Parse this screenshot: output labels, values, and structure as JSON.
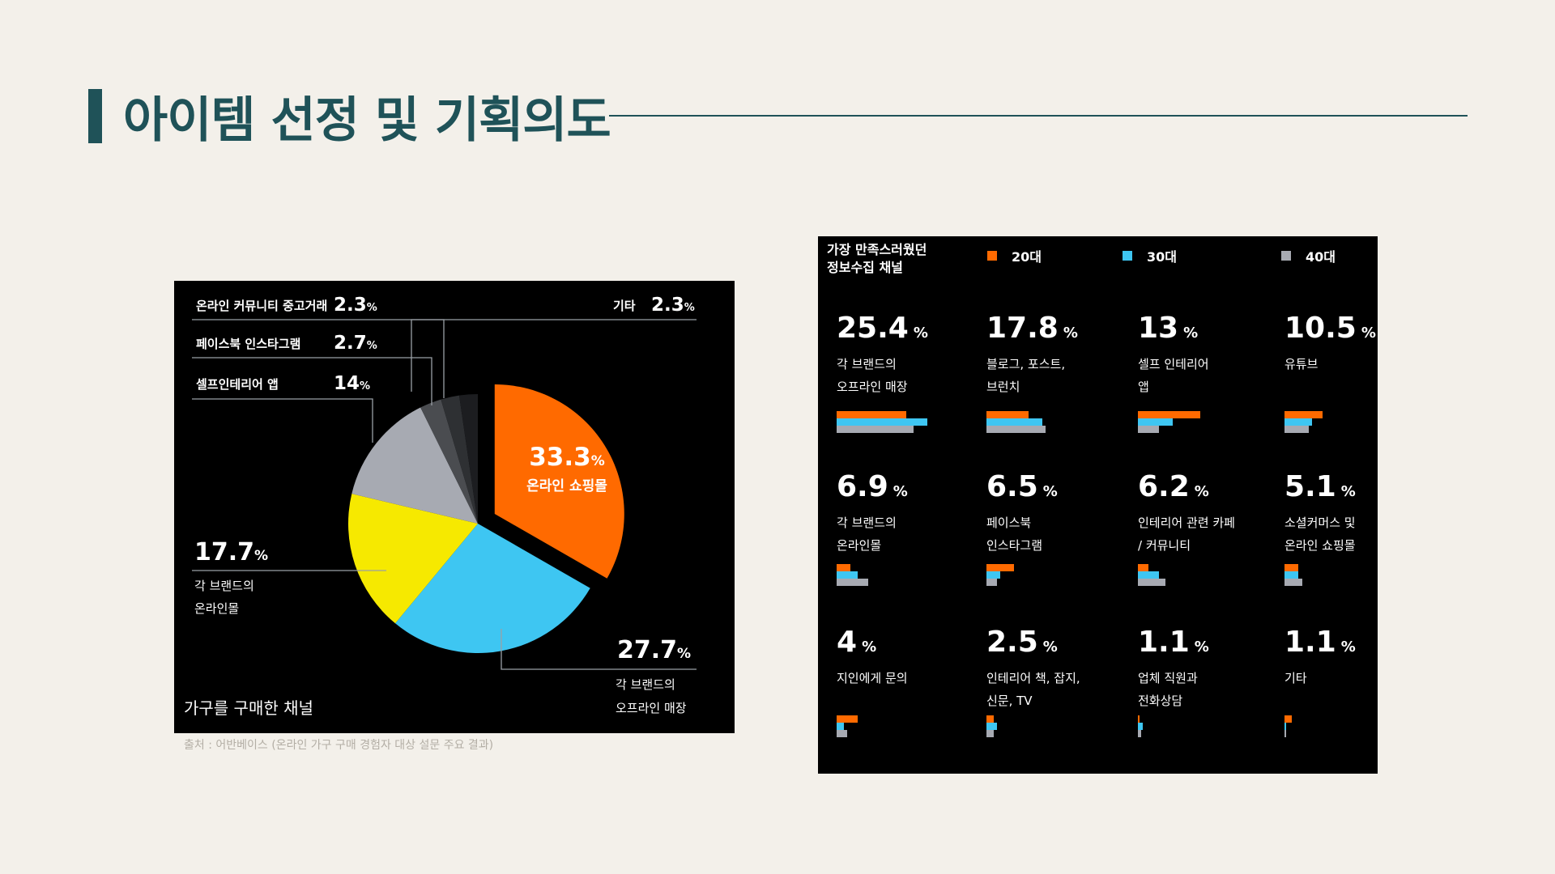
{
  "page": {
    "title": "아이템 선정 및 기획의도",
    "source_note": "출처 : 어반베이스 (온라인 가구 구매 경험자 대상 설문 주요 결과)",
    "accent": "#1f5258"
  },
  "chart_data": [
    {
      "type": "pie",
      "title": "가구를 구매한 채널",
      "slices": [
        {
          "label": "온라인 쇼핑몰",
          "value": 33.3,
          "value_text": "33.3",
          "color": "#ff6a00"
        },
        {
          "label": "각 브랜드의\n오프라인 매장",
          "value": 27.7,
          "value_text": "27.7",
          "color": "#3ec6f2"
        },
        {
          "label": "각 브랜드의\n온라인몰",
          "value": 17.7,
          "value_text": "17.7",
          "color": "#f6e900"
        },
        {
          "label": "셀프인테리어 앱",
          "value": 14,
          "value_text": "14",
          "color": "#a7aab2"
        },
        {
          "label": "페이스북 인스타그램",
          "value": 2.7,
          "value_text": "2.7",
          "color": "#4a4c50"
        },
        {
          "label": "온라인 커뮤니티 중고거래",
          "value": 2.3,
          "value_text": "2.3",
          "color": "#2e3033"
        },
        {
          "label": "기타",
          "value": 2.3,
          "value_text": "2.3",
          "color": "#1c1d20"
        }
      ],
      "percent_suffix": "%"
    },
    {
      "type": "bar",
      "title": "가장 만족스러웠던\n정보수집 채널",
      "series": [
        {
          "name": "20대",
          "color": "#ff6a00"
        },
        {
          "name": "30대",
          "color": "#3ec6f2"
        },
        {
          "name": "40대",
          "color": "#a7aab2"
        }
      ],
      "percent_suffix": "%",
      "items": [
        {
          "value": "25.4",
          "label": "각 브랜드의\n오프라인 매장",
          "bars": [
            20,
            26,
            22
          ]
        },
        {
          "value": "17.8",
          "label": "블로그, 포스트,\n브런치",
          "bars": [
            12,
            16,
            17
          ]
        },
        {
          "value": "13",
          "label": "셀프 인테리어\n앱",
          "bars": [
            18,
            10,
            6
          ]
        },
        {
          "value": "10.5",
          "label": "유튜브",
          "bars": [
            11,
            8,
            7
          ]
        },
        {
          "value": "6.9",
          "label": "각 브랜드의\n온라인몰",
          "bars": [
            4,
            6,
            9
          ]
        },
        {
          "value": "6.5",
          "label": "페이스북\n인스타그램",
          "bars": [
            8,
            4,
            3
          ]
        },
        {
          "value": "6.2",
          "label": "인테리어 관련 카페\n/ 커뮤니티",
          "bars": [
            3,
            6,
            8
          ]
        },
        {
          "value": "5.1",
          "label": "소셜커머스 및\n온라인 쇼핑몰",
          "bars": [
            4,
            4,
            5
          ]
        },
        {
          "value": "4",
          "label": "지인에게 문의",
          "bars": [
            6,
            2,
            3
          ]
        },
        {
          "value": "2.5",
          "label": "인테리어 책, 잡지,\n신문, TV",
          "bars": [
            2,
            3,
            2
          ]
        },
        {
          "value": "1.1",
          "label": "업체 직원과\n전화상담",
          "bars": [
            0.5,
            1.5,
            1
          ]
        },
        {
          "value": "1.1",
          "label": "기타",
          "bars": [
            2,
            0.3,
            0.3
          ]
        }
      ]
    }
  ]
}
